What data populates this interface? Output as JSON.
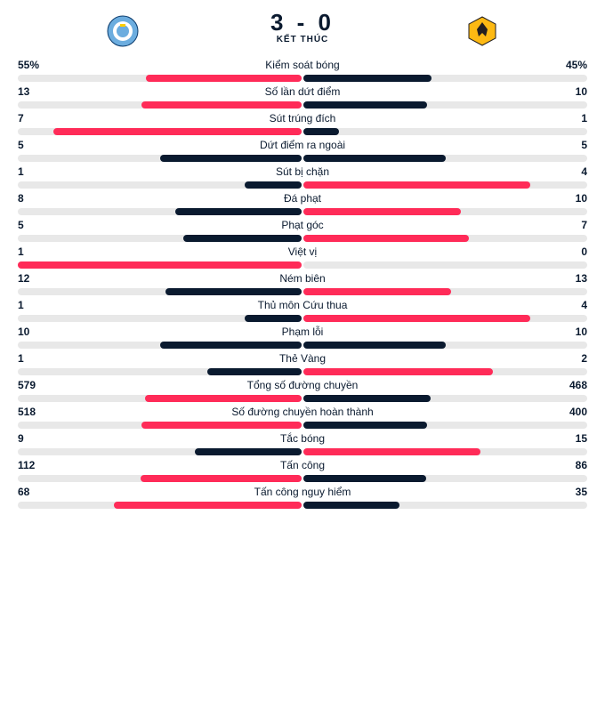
{
  "header": {
    "home_score": "3",
    "away_score": "0",
    "score_sep": " - ",
    "status": "KẾT THÚC"
  },
  "colors": {
    "home_bar": "#0a1a2f",
    "away_bar": "#ff2b58",
    "home_highlight": "#ff2b58",
    "away_highlight": "#0a1a2f",
    "track": "#e8e8e8",
    "text": "#0a1a2f"
  },
  "team_logos": {
    "home": {
      "name": "manchester-city",
      "bg": "#6caddf",
      "accent": "#ffffff"
    },
    "away": {
      "name": "wolves",
      "bg": "#fdb913",
      "accent": "#231f20"
    }
  },
  "stats": [
    {
      "label": "Kiểm soát bóng",
      "home": "55%",
      "away": "45%",
      "home_pct": 55,
      "away_pct": 45,
      "highlight": "home"
    },
    {
      "label": "Số lần dứt điểm",
      "home": "13",
      "away": "10",
      "home_pct": 56.5,
      "away_pct": 43.5,
      "highlight": "home"
    },
    {
      "label": "Sút trúng đích",
      "home": "7",
      "away": "1",
      "home_pct": 87.5,
      "away_pct": 12.5,
      "highlight": "home"
    },
    {
      "label": "Dứt điểm ra ngoài",
      "home": "5",
      "away": "5",
      "home_pct": 50,
      "away_pct": 50,
      "highlight": "none"
    },
    {
      "label": "Sút bị chặn",
      "home": "1",
      "away": "4",
      "home_pct": 20,
      "away_pct": 80,
      "highlight": "away"
    },
    {
      "label": "Đá phạt",
      "home": "8",
      "away": "10",
      "home_pct": 44.4,
      "away_pct": 55.6,
      "highlight": "away"
    },
    {
      "label": "Phạt góc",
      "home": "5",
      "away": "7",
      "home_pct": 41.7,
      "away_pct": 58.3,
      "highlight": "away"
    },
    {
      "label": "Việt vị",
      "home": "1",
      "away": "0",
      "home_pct": 100,
      "away_pct": 0,
      "highlight": "home"
    },
    {
      "label": "Ném biên",
      "home": "12",
      "away": "13",
      "home_pct": 48,
      "away_pct": 52,
      "highlight": "away"
    },
    {
      "label": "Thủ môn Cứu thua",
      "home": "1",
      "away": "4",
      "home_pct": 20,
      "away_pct": 80,
      "highlight": "away"
    },
    {
      "label": "Phạm lỗi",
      "home": "10",
      "away": "10",
      "home_pct": 50,
      "away_pct": 50,
      "highlight": "none"
    },
    {
      "label": "Thẻ Vàng",
      "home": "1",
      "away": "2",
      "home_pct": 33.3,
      "away_pct": 66.7,
      "highlight": "away"
    },
    {
      "label": "Tổng số đường chuyền",
      "home": "579",
      "away": "468",
      "home_pct": 55.3,
      "away_pct": 44.7,
      "highlight": "home"
    },
    {
      "label": "Số đường chuyền hoàn thành",
      "home": "518",
      "away": "400",
      "home_pct": 56.4,
      "away_pct": 43.6,
      "highlight": "home"
    },
    {
      "label": "Tắc bóng",
      "home": "9",
      "away": "15",
      "home_pct": 37.5,
      "away_pct": 62.5,
      "highlight": "away"
    },
    {
      "label": "Tấn công",
      "home": "112",
      "away": "86",
      "home_pct": 56.6,
      "away_pct": 43.4,
      "highlight": "home"
    },
    {
      "label": "Tấn công nguy hiểm",
      "home": "68",
      "away": "35",
      "home_pct": 66,
      "away_pct": 34,
      "highlight": "home"
    }
  ]
}
